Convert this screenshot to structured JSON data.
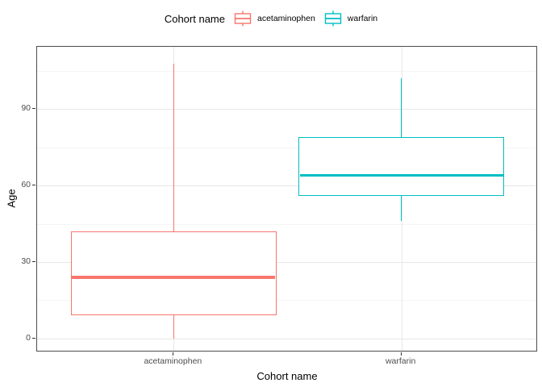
{
  "chart_data": {
    "type": "boxplot",
    "legend": {
      "title": "Cohort name",
      "position": "top",
      "entries": [
        {
          "label": "acetaminophen",
          "color": "#F8766D"
        },
        {
          "label": "warfarin",
          "color": "#00BFC4"
        }
      ]
    },
    "xlabel": "Cohort name",
    "ylabel": "Age",
    "categories": [
      "acetaminophen",
      "warfarin"
    ],
    "y_ticks": [
      0,
      30,
      60,
      90
    ],
    "y_minor_gridlines": [
      15,
      45,
      75,
      105
    ],
    "ylim": [
      -5.5,
      114.5
    ],
    "grid": true,
    "series": [
      {
        "name": "acetaminophen",
        "color": "#F8766D",
        "min": 0,
        "q1": 9,
        "median": 24,
        "q3": 42,
        "max": 108
      },
      {
        "name": "warfarin",
        "color": "#00BFC4",
        "min": 46,
        "q1": 56,
        "median": 64,
        "q3": 79,
        "max": 102
      }
    ],
    "panel": {
      "background": "#FFFFFF",
      "border_color": "#4D4D4D",
      "major_grid_color": "#E7E7E7",
      "minor_grid_color": "#F4F4F4",
      "tick_label_color": "#4D4D4D"
    }
  }
}
